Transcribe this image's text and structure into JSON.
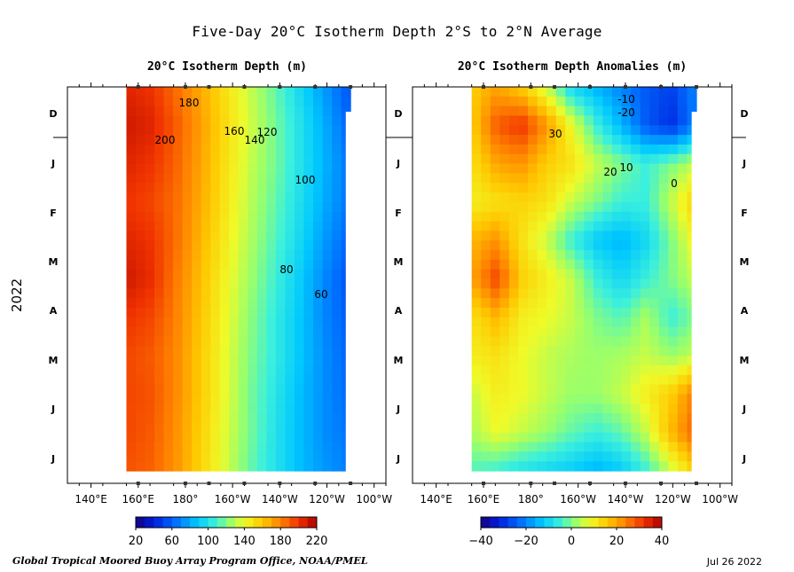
{
  "title": "Five-Day 20°C Isotherm Depth  2°S to 2°N Average",
  "footer_left": "Global Tropical Moored Buoy Array Program Office, NOAA/PMEL",
  "footer_right": "Jul 26 2022",
  "year_label": "2022",
  "chart_data": [
    {
      "type": "heatmap",
      "title": "20°C Isotherm Depth (m)",
      "x_tick_labels": [
        "140°E",
        "160°E",
        "180°",
        "160°W",
        "140°W",
        "120°W",
        "100°W"
      ],
      "x_ticks_deg": [
        140,
        160,
        180,
        200,
        220,
        240,
        260
      ],
      "y_tick_labels": [
        "D",
        "J",
        "F",
        "M",
        "A",
        "M",
        "J",
        "J"
      ],
      "x_range_deg": [
        130,
        265
      ],
      "data_x_range_deg": [
        155,
        250
      ],
      "time_range": [
        "2021-11-26",
        "2022-07-24"
      ],
      "colorbar": {
        "min": 20,
        "max": 220,
        "ticks": [
          20,
          60,
          100,
          140,
          180,
          220
        ]
      },
      "contour_labels": [
        "200",
        "180",
        "160",
        "140",
        "120",
        "100",
        "80",
        "60"
      ],
      "cells": [
        [
          205,
          200,
          185,
          168,
          150,
          132,
          115,
          95,
          75,
          55
        ],
        [
          210,
          205,
          190,
          172,
          152,
          134,
          118,
          100,
          80,
          60
        ],
        [
          205,
          200,
          188,
          170,
          150,
          132,
          118,
          100,
          82,
          65
        ],
        [
          200,
          195,
          185,
          168,
          148,
          130,
          115,
          98,
          80,
          65
        ],
        [
          205,
          200,
          185,
          165,
          145,
          128,
          112,
          95,
          75,
          60
        ],
        [
          210,
          202,
          182,
          162,
          142,
          125,
          108,
          90,
          70,
          55
        ],
        [
          200,
          195,
          180,
          160,
          140,
          122,
          105,
          88,
          70,
          58
        ],
        [
          195,
          190,
          178,
          158,
          138,
          120,
          105,
          88,
          72,
          60
        ],
        [
          195,
          192,
          178,
          158,
          138,
          118,
          102,
          85,
          72,
          62
        ],
        [
          195,
          190,
          176,
          156,
          136,
          118,
          100,
          85,
          72,
          65
        ],
        [
          192,
          188,
          175,
          155,
          135,
          115,
          100,
          85,
          75,
          68
        ]
      ]
    },
    {
      "type": "heatmap",
      "title": "20°C Isotherm Depth Anomalies (m)",
      "x_tick_labels": [
        "140°E",
        "160°E",
        "180°",
        "160°W",
        "140°W",
        "120°W",
        "100°W"
      ],
      "x_ticks_deg": [
        140,
        160,
        180,
        200,
        220,
        240,
        260
      ],
      "y_tick_labels": [
        "D",
        "J",
        "F",
        "M",
        "A",
        "M",
        "J",
        "J"
      ],
      "x_range_deg": [
        130,
        265
      ],
      "data_x_range_deg": [
        155,
        250
      ],
      "time_range": [
        "2021-11-26",
        "2022-07-24"
      ],
      "colorbar": {
        "min": -40,
        "max": 40,
        "ticks": [
          -40,
          -20,
          0,
          20,
          40
        ]
      },
      "contour_labels": [
        "30",
        "20",
        "10",
        "0",
        "-10",
        "-20"
      ],
      "cells": [
        [
          15,
          20,
          15,
          5,
          -10,
          -15,
          -20,
          -25,
          -28,
          -20
        ],
        [
          15,
          28,
          32,
          22,
          8,
          -5,
          -15,
          -25,
          -30,
          -20
        ],
        [
          12,
          20,
          22,
          15,
          12,
          5,
          0,
          -5,
          0,
          5
        ],
        [
          10,
          12,
          14,
          12,
          5,
          0,
          -5,
          -5,
          5,
          15
        ],
        [
          18,
          22,
          12,
          5,
          -5,
          -12,
          -15,
          -10,
          0,
          10
        ],
        [
          20,
          30,
          15,
          10,
          5,
          -5,
          -10,
          -5,
          0,
          5
        ],
        [
          12,
          18,
          10,
          8,
          5,
          0,
          -3,
          3,
          -5,
          0
        ],
        [
          10,
          12,
          8,
          5,
          3,
          2,
          3,
          5,
          2,
          5
        ],
        [
          5,
          10,
          8,
          5,
          2,
          2,
          5,
          10,
          15,
          25
        ],
        [
          3,
          8,
          5,
          2,
          -2,
          -5,
          -2,
          5,
          18,
          28
        ],
        [
          -3,
          -5,
          -8,
          -10,
          -12,
          -15,
          -12,
          -5,
          5,
          15
        ]
      ]
    }
  ]
}
